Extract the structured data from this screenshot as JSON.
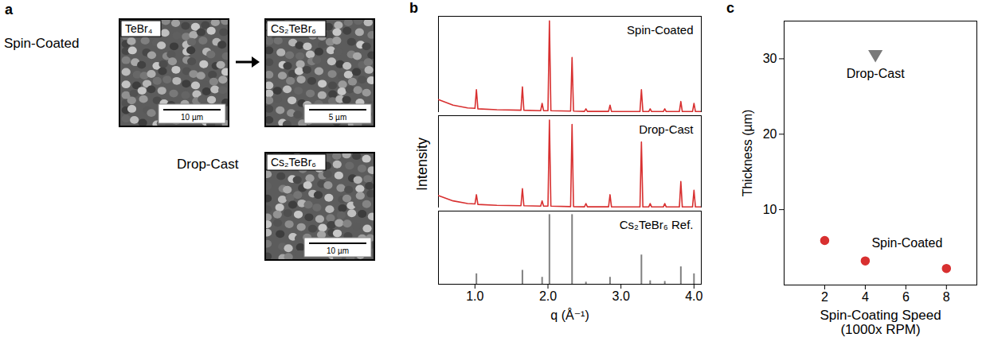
{
  "panel_a": {
    "label": "a",
    "rows": [
      {
        "label": "Spin-Coated",
        "images": [
          {
            "caption": "TeBr₄",
            "scale_bar": "10 µm"
          },
          {
            "caption": "Cs₂TeBr₆",
            "scale_bar": "5 µm"
          }
        ]
      },
      {
        "label": "Drop-Cast",
        "images": [
          {
            "caption": "Cs₂TeBr₆",
            "scale_bar": "10 µm"
          }
        ]
      }
    ]
  },
  "chart_data": [
    {
      "type": "line",
      "label": "b",
      "xlabel": "q (Å⁻¹)",
      "ylabel": "Intensity",
      "xlim": [
        0.5,
        4.1
      ],
      "xticks": [
        1,
        2,
        3,
        4
      ],
      "ylim": [
        0,
        1.05
      ],
      "tick_labels": "x",
      "series": [
        {
          "name": "Spin-Coated",
          "color": "#d83030",
          "x": [
            0.5,
            0.7,
            0.9,
            1.0,
            1.02,
            1.04,
            1.3,
            1.63,
            1.65,
            1.67,
            1.9,
            1.92,
            1.94,
            2.0,
            2.02,
            2.04,
            2.31,
            2.33,
            2.35,
            2.5,
            2.52,
            2.54,
            2.83,
            2.85,
            2.87,
            3.26,
            3.28,
            3.3,
            3.38,
            3.4,
            3.42,
            3.58,
            3.6,
            3.62,
            3.8,
            3.82,
            3.84,
            3.98,
            4.0,
            4.02,
            4.1
          ],
          "values": [
            0.14,
            0.08,
            0.05,
            0.045,
            0.25,
            0.04,
            0.03,
            0.025,
            0.28,
            0.025,
            0.02,
            0.1,
            0.02,
            0.02,
            1.0,
            0.02,
            0.015,
            0.6,
            0.015,
            0.012,
            0.04,
            0.012,
            0.012,
            0.08,
            0.012,
            0.01,
            0.25,
            0.01,
            0.01,
            0.04,
            0.01,
            0.01,
            0.04,
            0.01,
            0.01,
            0.12,
            0.01,
            0.01,
            0.1,
            0.01,
            0.01
          ]
        },
        {
          "name": "Drop-Cast",
          "color": "#d83030",
          "x": [
            0.5,
            0.7,
            0.9,
            1.0,
            1.02,
            1.04,
            1.3,
            1.63,
            1.65,
            1.67,
            1.9,
            1.92,
            1.94,
            2.0,
            2.02,
            2.04,
            2.31,
            2.33,
            2.35,
            2.5,
            2.52,
            2.54,
            2.83,
            2.85,
            2.87,
            3.26,
            3.28,
            3.3,
            3.38,
            3.4,
            3.42,
            3.58,
            3.6,
            3.62,
            3.8,
            3.82,
            3.84,
            3.98,
            4.0,
            4.02,
            4.1
          ],
          "values": [
            0.14,
            0.08,
            0.05,
            0.045,
            0.15,
            0.04,
            0.03,
            0.025,
            0.22,
            0.025,
            0.02,
            0.08,
            0.02,
            0.02,
            1.0,
            0.02,
            0.015,
            0.95,
            0.015,
            0.012,
            0.05,
            0.012,
            0.012,
            0.15,
            0.012,
            0.01,
            0.75,
            0.01,
            0.01,
            0.05,
            0.01,
            0.01,
            0.05,
            0.01,
            0.01,
            0.3,
            0.01,
            0.01,
            0.2,
            0.01,
            0.01
          ]
        },
        {
          "name": "Cs₂TeBr₆ Ref.",
          "color": "#808080",
          "type": "stem",
          "x": [
            1.02,
            1.65,
            1.92,
            2.02,
            2.33,
            2.52,
            2.85,
            3.28,
            3.4,
            3.6,
            3.82,
            4.0
          ],
          "values": [
            0.15,
            0.2,
            0.1,
            1.0,
            1.0,
            0.03,
            0.1,
            0.42,
            0.05,
            0.04,
            0.25,
            0.15
          ]
        }
      ]
    },
    {
      "type": "scatter",
      "label": "c",
      "xlabel": "Spin-Coating Speed (1000x RPM)",
      "ylabel": "Thickness (µm)",
      "xlim": [
        0,
        9.5
      ],
      "xticks": [
        2,
        4,
        6,
        8
      ],
      "ylim": [
        0,
        35
      ],
      "yticks": [
        10,
        20,
        30
      ],
      "series": [
        {
          "name": "Spin-Coated",
          "color": "#d83030",
          "marker": "circle",
          "x": [
            2,
            4,
            8
          ],
          "values": [
            5.9,
            3.2,
            2.2
          ]
        },
        {
          "name": "Drop-Cast",
          "color": "#7a7a7a",
          "marker": "triangle-down",
          "x": [
            4.5
          ],
          "values": [
            30.5
          ]
        }
      ]
    }
  ]
}
